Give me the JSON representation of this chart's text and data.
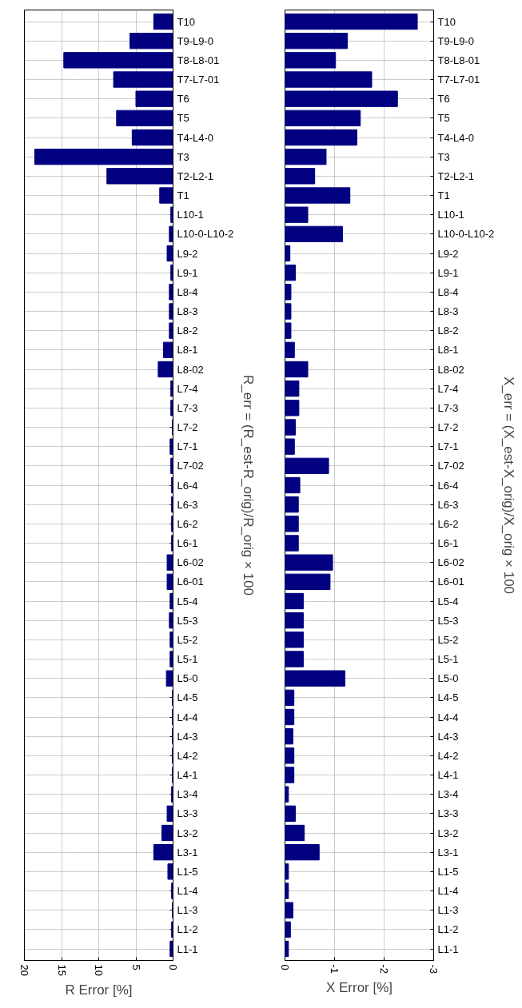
{
  "chart_data": [
    {
      "type": "bar",
      "orientation": "horizontal",
      "title": "R_err = (R_est-R_orig)/R_orig × 100",
      "xlabel": "R Error [%]",
      "categories": [
        "T10",
        "T9-L9-0",
        "T8-L8-01",
        "T7-L7-01",
        "T6",
        "T5",
        "T4-L4-0",
        "T3",
        "T2-L2-1",
        "T1",
        "L10-1",
        "L10-0-L10-2",
        "L9-2",
        "L9-1",
        "L8-4",
        "L8-3",
        "L8-2",
        "L8-1",
        "L8-02",
        "L7-4",
        "L7-3",
        "L7-2",
        "L7-1",
        "L7-02",
        "L6-4",
        "L6-3",
        "L6-2",
        "L6-1",
        "L6-02",
        "L6-01",
        "L5-4",
        "L5-3",
        "L5-2",
        "L5-1",
        "L5-0",
        "L4-5",
        "L4-4",
        "L4-3",
        "L4-2",
        "L4-1",
        "L3-4",
        "L3-3",
        "L3-2",
        "L3-1",
        "L1-5",
        "L1-4",
        "L1-3",
        "L1-2",
        "L1-1"
      ],
      "values": [
        2.6,
        5.8,
        14.7,
        8.0,
        5.0,
        7.6,
        5.5,
        18.6,
        8.9,
        1.8,
        0.3,
        0.5,
        0.8,
        0.3,
        0.5,
        0.5,
        0.5,
        1.3,
        2.0,
        0.3,
        0.3,
        0.1,
        0.4,
        0.3,
        0.2,
        0.2,
        0.2,
        0.2,
        0.8,
        0.8,
        0.4,
        0.5,
        0.4,
        0.4,
        0.9,
        0.1,
        0.1,
        0.1,
        0.1,
        0.1,
        0.2,
        0.8,
        1.5,
        2.6,
        0.7,
        0.2,
        0.1,
        0.2,
        0.4
      ],
      "color": "#000080",
      "xlim": [
        20,
        0
      ],
      "xticks": [
        0,
        5,
        10,
        15,
        20
      ],
      "grid": true
    },
    {
      "type": "bar",
      "orientation": "horizontal",
      "title": "X_err = (X_est-X_orig)/X_orig × 100",
      "xlabel": "X Error [%]",
      "categories": [
        "T10",
        "T9-L9-0",
        "T8-L8-01",
        "T7-L7-01",
        "T6",
        "T5",
        "T4-L4-0",
        "T3",
        "T2-L2-1",
        "T1",
        "L10-1",
        "L10-0-L10-2",
        "L9-2",
        "L9-1",
        "L8-4",
        "L8-3",
        "L8-2",
        "L8-1",
        "L8-02",
        "L7-4",
        "L7-3",
        "L7-2",
        "L7-1",
        "L7-02",
        "L6-4",
        "L6-3",
        "L6-2",
        "L6-1",
        "L6-02",
        "L6-01",
        "L5-4",
        "L5-3",
        "L5-2",
        "L5-1",
        "L5-0",
        "L4-5",
        "L4-4",
        "L4-3",
        "L4-2",
        "L4-1",
        "L3-4",
        "L3-3",
        "L3-2",
        "L3-1",
        "L1-5",
        "L1-4",
        "L1-3",
        "L1-2",
        "L1-1"
      ],
      "values": [
        -2.67,
        -1.26,
        -1.02,
        -1.75,
        -2.27,
        -1.52,
        -1.45,
        -0.83,
        -0.6,
        -1.31,
        -0.46,
        -1.16,
        -0.1,
        -0.21,
        -0.12,
        -0.12,
        -0.12,
        -0.19,
        -0.46,
        -0.28,
        -0.28,
        -0.21,
        -0.19,
        -0.88,
        -0.3,
        -0.27,
        -0.27,
        -0.27,
        -0.96,
        -0.91,
        -0.37,
        -0.37,
        -0.37,
        -0.37,
        -1.21,
        -0.18,
        -0.18,
        -0.16,
        -0.18,
        -0.18,
        -0.07,
        -0.21,
        -0.39,
        -0.69,
        -0.07,
        -0.07,
        -0.16,
        -0.11,
        -0.07
      ],
      "color": "#000080",
      "xlim": [
        0,
        -3
      ],
      "xticks": [
        0,
        -1,
        -2,
        -3
      ],
      "grid": true
    }
  ]
}
